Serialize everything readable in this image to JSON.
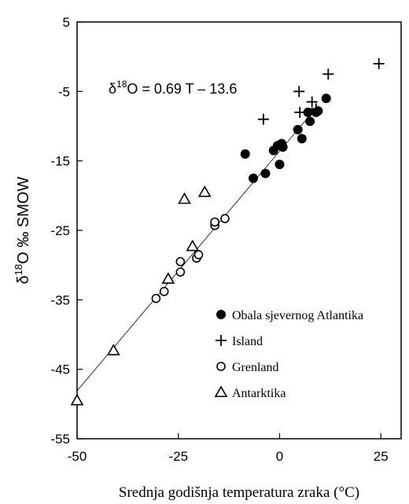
{
  "chart_data": {
    "type": "scatter",
    "xlabel": "Srednja godišnja temperatura zraka (°C)",
    "ylabel": {
      "base": "δ",
      "sup": "18",
      "rest": "O ‰ SMOW"
    },
    "xlim": [
      -50,
      30
    ],
    "ylim": [
      -55,
      5
    ],
    "xticks": [
      -50,
      -25,
      0,
      25
    ],
    "yticks": [
      5,
      -5,
      -15,
      -25,
      -35,
      -45,
      -55
    ],
    "grid": false,
    "legend_position": "bottom-right",
    "annotation": {
      "prefix": "δ",
      "sup": "18",
      "rest": "O = 0.69 T – 13.6"
    },
    "fit_line": {
      "slope": 0.69,
      "intercept": -13.6,
      "x_range": [
        -50,
        8
      ]
    },
    "series": [
      {
        "name": "Obala sjevernog Atlantika",
        "marker": "filled-circle",
        "points": [
          [
            -8.5,
            -14.0
          ],
          [
            -6.5,
            -17.5
          ],
          [
            -3.5,
            -16.8
          ],
          [
            -1.5,
            -13.5
          ],
          [
            -0.5,
            -12.8
          ],
          [
            0.0,
            -15.5
          ],
          [
            0.5,
            -12.5
          ],
          [
            0.8,
            -13.0
          ],
          [
            4.5,
            -10.5
          ],
          [
            5.5,
            -11.8
          ],
          [
            7.0,
            -8.0
          ],
          [
            7.5,
            -9.3
          ],
          [
            9.0,
            -8.0
          ],
          [
            9.5,
            -7.8
          ],
          [
            11.5,
            -6.0
          ]
        ]
      },
      {
        "name": "Island",
        "marker": "plus",
        "points": [
          [
            -4.0,
            -9.0
          ],
          [
            4.8,
            -5.0
          ],
          [
            5.0,
            -8.0
          ],
          [
            8.0,
            -6.5
          ],
          [
            9.0,
            -7.5
          ],
          [
            12.0,
            -2.5
          ],
          [
            24.5,
            -1.0
          ]
        ]
      },
      {
        "name": "Grenland",
        "marker": "open-circle",
        "points": [
          [
            -30.5,
            -34.8
          ],
          [
            -28.5,
            -33.8
          ],
          [
            -24.5,
            -31.0
          ],
          [
            -24.5,
            -29.5
          ],
          [
            -20.5,
            -29.0
          ],
          [
            -20.0,
            -28.5
          ],
          [
            -16.0,
            -24.3
          ],
          [
            -16.0,
            -23.8
          ],
          [
            -13.5,
            -23.3
          ]
        ]
      },
      {
        "name": "Antarktika",
        "marker": "open-triangle",
        "points": [
          [
            -50.0,
            -49.5
          ],
          [
            -41.0,
            -42.3
          ],
          [
            -27.5,
            -32.0
          ],
          [
            -23.5,
            -20.5
          ],
          [
            -21.5,
            -27.3
          ],
          [
            -18.5,
            -19.5
          ]
        ]
      }
    ]
  }
}
